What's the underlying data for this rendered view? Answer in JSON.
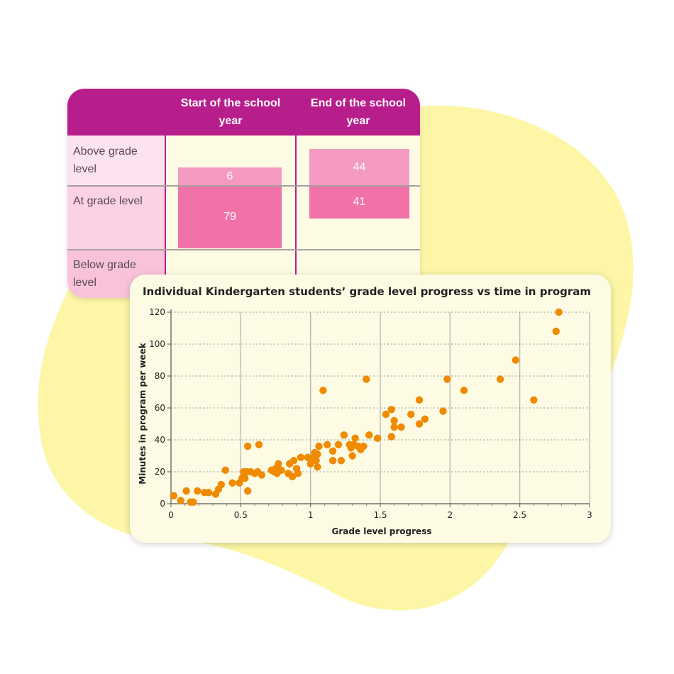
{
  "colors": {
    "blob": "#fcf6a6",
    "header": "#b81e8b",
    "bar_above": "#f49ac2",
    "bar_at": "#f072a9",
    "label_above_bg": "#fde3ef",
    "label_at_bg": "#fbd1e4",
    "label_below_bg": "#f8c3da",
    "point": "#f08a00"
  },
  "grade_table": {
    "columns": [
      "Start of the school year",
      "End of the school year"
    ],
    "rows": [
      "Above grade level",
      "At grade level",
      "Below grade level"
    ],
    "start": {
      "above": "6",
      "at": "79",
      "above_pct": 6,
      "at_pct": 79
    },
    "end": {
      "above": "44",
      "at": "41",
      "above_pct": 44,
      "at_pct": 41
    }
  },
  "chart_data": {
    "type": "scatter",
    "title": "Individual Kindergarten students’ grade level progress vs time in program",
    "xlabel": "Grade level progress",
    "ylabel": "Minutes in program per week",
    "xlim": [
      0,
      3
    ],
    "ylim": [
      0,
      120
    ],
    "xticks": [
      "0",
      "0.5",
      "1",
      "1.5",
      "2",
      "2.5",
      "3"
    ],
    "yticks": [
      "0",
      "20",
      "40",
      "60",
      "80",
      "100",
      "120"
    ],
    "grid": true,
    "points": [
      [
        0.02,
        5
      ],
      [
        0.07,
        2
      ],
      [
        0.11,
        8
      ],
      [
        0.14,
        1
      ],
      [
        0.16,
        1
      ],
      [
        0.19,
        8
      ],
      [
        0.24,
        7
      ],
      [
        0.27,
        7
      ],
      [
        0.32,
        6
      ],
      [
        0.34,
        9
      ],
      [
        0.36,
        12
      ],
      [
        0.39,
        21
      ],
      [
        0.44,
        13
      ],
      [
        0.49,
        13
      ],
      [
        0.51,
        16
      ],
      [
        0.52,
        20
      ],
      [
        0.53,
        16
      ],
      [
        0.54,
        20
      ],
      [
        0.55,
        36
      ],
      [
        0.55,
        8
      ],
      [
        0.57,
        20
      ],
      [
        0.6,
        19
      ],
      [
        0.62,
        20
      ],
      [
        0.63,
        37
      ],
      [
        0.65,
        18
      ],
      [
        0.72,
        21
      ],
      [
        0.74,
        20
      ],
      [
        0.75,
        22
      ],
      [
        0.76,
        19
      ],
      [
        0.77,
        25
      ],
      [
        0.79,
        21
      ],
      [
        0.84,
        19
      ],
      [
        0.85,
        25
      ],
      [
        0.87,
        17
      ],
      [
        0.88,
        27
      ],
      [
        0.9,
        22
      ],
      [
        0.91,
        19
      ],
      [
        0.93,
        29
      ],
      [
        0.98,
        29
      ],
      [
        1.0,
        25
      ],
      [
        1.02,
        29
      ],
      [
        1.03,
        32
      ],
      [
        1.04,
        27
      ],
      [
        1.05,
        31
      ],
      [
        1.05,
        23
      ],
      [
        1.06,
        36
      ],
      [
        1.09,
        71
      ],
      [
        1.12,
        37
      ],
      [
        1.16,
        33
      ],
      [
        1.16,
        27
      ],
      [
        1.2,
        37
      ],
      [
        1.22,
        27
      ],
      [
        1.24,
        43
      ],
      [
        1.28,
        37
      ],
      [
        1.29,
        35
      ],
      [
        1.3,
        30
      ],
      [
        1.31,
        37
      ],
      [
        1.32,
        41
      ],
      [
        1.34,
        36
      ],
      [
        1.36,
        34
      ],
      [
        1.38,
        36
      ],
      [
        1.4,
        78
      ],
      [
        1.42,
        43
      ],
      [
        1.48,
        41
      ],
      [
        1.54,
        56
      ],
      [
        1.58,
        42
      ],
      [
        1.58,
        59
      ],
      [
        1.6,
        48
      ],
      [
        1.6,
        52
      ],
      [
        1.65,
        48
      ],
      [
        1.72,
        56
      ],
      [
        1.78,
        50
      ],
      [
        1.78,
        65
      ],
      [
        1.82,
        53
      ],
      [
        1.95,
        58
      ],
      [
        1.98,
        78
      ],
      [
        2.1,
        71
      ],
      [
        2.36,
        78
      ],
      [
        2.47,
        90
      ],
      [
        2.6,
        65
      ],
      [
        2.76,
        108
      ],
      [
        2.78,
        120
      ]
    ]
  }
}
